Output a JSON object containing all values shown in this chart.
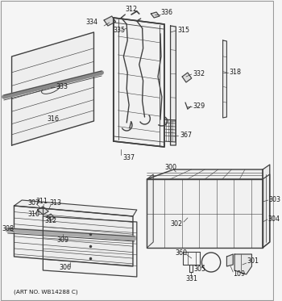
{
  "art_no": "(ART NO. WB14288 C)",
  "bg_color": "#f5f5f5",
  "fig_width": 3.5,
  "fig_height": 3.73,
  "dpi": 100,
  "line_color": "#404040",
  "text_color": "#1a1a1a",
  "font_size": 5.8,
  "border_color": "#999999"
}
